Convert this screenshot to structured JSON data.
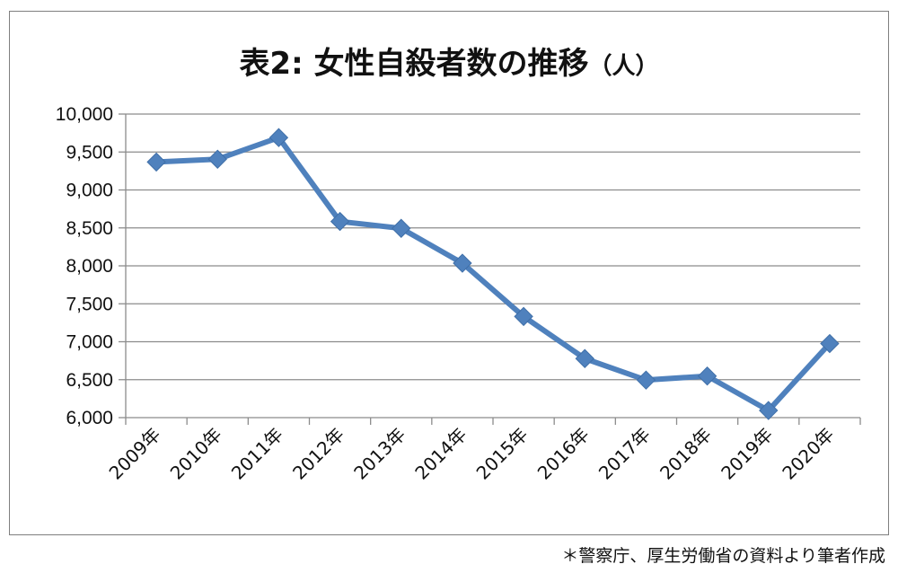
{
  "chart_data": {
    "type": "line",
    "title": "表2: 女性自殺者数の推移",
    "title_unit": "（人）",
    "categories": [
      "2009年",
      "2010年",
      "2011年",
      "2012年",
      "2013年",
      "2014年",
      "2015年",
      "2016年",
      "2017年",
      "2018年",
      "2019年",
      "2020年"
    ],
    "series": [
      {
        "values": [
          9368,
          9405,
          9690,
          8585,
          8494,
          8035,
          7333,
          6778,
          6495,
          6548,
          6094,
          6976
        ]
      }
    ],
    "ylim": [
      6000,
      10000
    ],
    "yticks": [
      6000,
      6500,
      7000,
      7500,
      8000,
      8500,
      9000,
      9500,
      10000
    ],
    "ytick_labels": [
      "6,000",
      "6,500",
      "7,000",
      "7,500",
      "8,000",
      "8,500",
      "9,000",
      "9,500",
      "10,000"
    ],
    "grid": true,
    "legend": "none",
    "line_color": "#4f81bd"
  },
  "source_note": "＊警察庁、厚生労働省の資料より筆者作成"
}
